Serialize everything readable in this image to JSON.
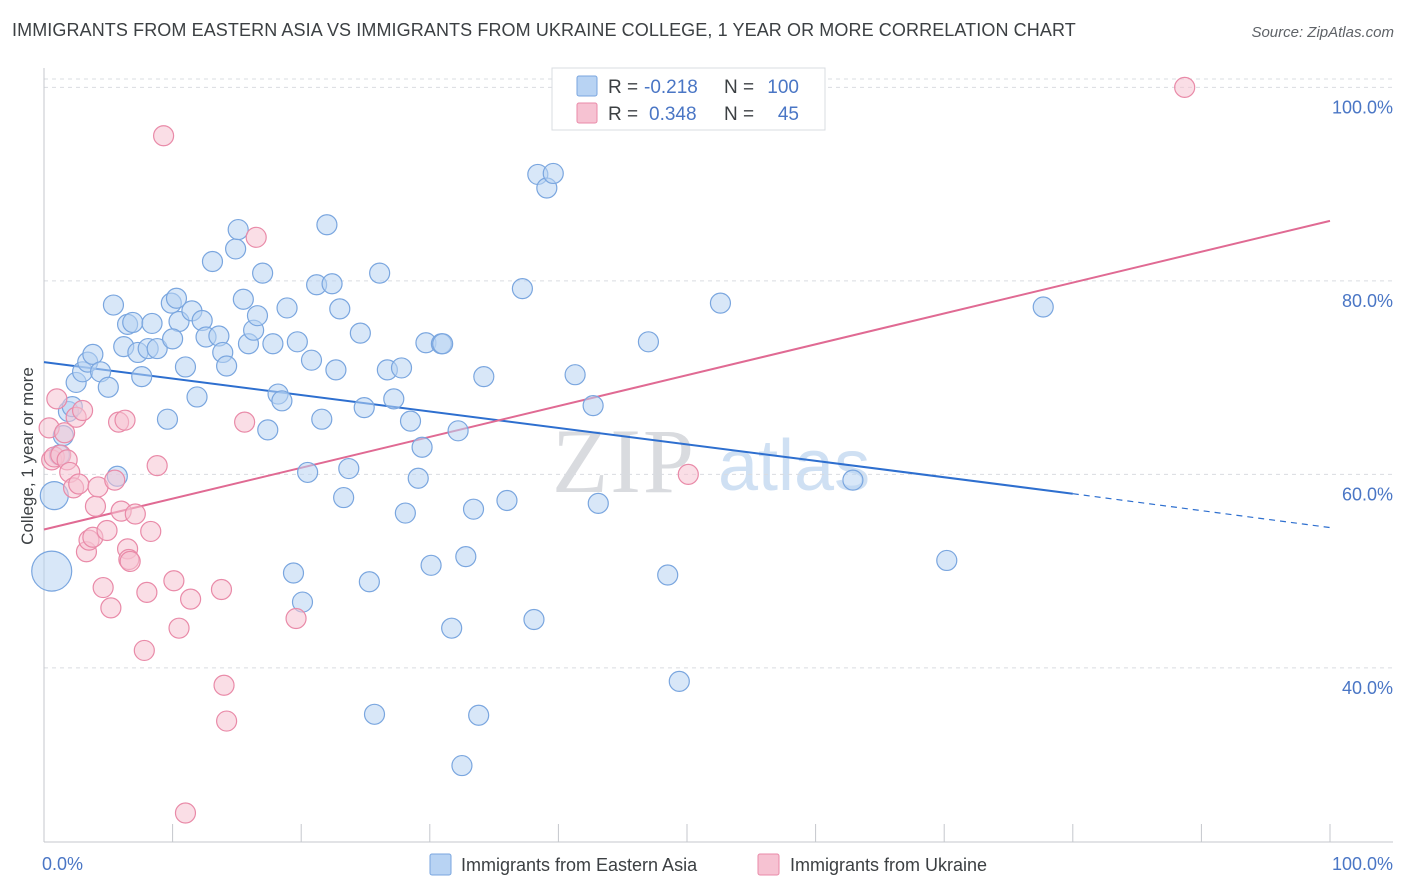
{
  "header": {
    "title": "IMMIGRANTS FROM EASTERN ASIA VS IMMIGRANTS FROM UKRAINE COLLEGE, 1 YEAR OR MORE CORRELATION CHART",
    "source": "Source: ZipAtlas.com"
  },
  "watermark": {
    "zip": "ZIP",
    "atlas": "atlas"
  },
  "legend": {
    "series": [
      {
        "r_label": "R =",
        "r_value": "-0.218",
        "n_label": "N =",
        "n_value": "100"
      },
      {
        "r_label": "R =",
        "r_value": "0.348",
        "n_label": "N =",
        "n_value": "45"
      }
    ]
  },
  "colors": {
    "blue_fill": "#b8d3f3",
    "blue_stroke": "#7aa6df",
    "blue_line": "#2e6fcf",
    "pink_fill": "#f6c2d2",
    "pink_stroke": "#e98aa8",
    "pink_line": "#e06a93",
    "grid": "#d9dce1",
    "tick_text": "#4a76c5"
  },
  "chart_data": {
    "type": "scatter",
    "title": "IMMIGRANTS FROM EASTERN ASIA VS IMMIGRANTS FROM UKRAINE COLLEGE, 1 YEAR OR MORE CORRELATION CHART",
    "xlabel": "",
    "ylabel": "College, 1 year or more",
    "xlim": [
      0,
      100
    ],
    "ylim": [
      22,
      102
    ],
    "x_tick_labels": [
      "0.0%",
      "100.0%"
    ],
    "y_ticks": [
      40,
      60,
      80,
      100
    ],
    "y_tick_labels": [
      "40.0%",
      "60.0%",
      "80.0%",
      "100.0%"
    ],
    "grid": true,
    "legend_position": "top-center",
    "series": [
      {
        "name": "Immigrants from Eastern Asia",
        "color": "#7aa6df",
        "r": -0.218,
        "n": 100,
        "trend": {
          "x": [
            0,
            80
          ],
          "y": [
            71.6,
            58.0
          ],
          "dashed_to": [
            100,
            54.5
          ]
        },
        "points": [
          [
            0.6,
            50.0,
            20
          ],
          [
            0.8,
            57.8,
            14
          ],
          [
            1.2,
            62.0,
            10
          ],
          [
            1.5,
            64.0,
            10
          ],
          [
            1.9,
            66.5,
            10
          ],
          [
            2.2,
            67.0,
            10
          ],
          [
            2.5,
            69.5,
            10
          ],
          [
            3.0,
            70.6,
            10
          ],
          [
            3.4,
            71.6,
            10
          ],
          [
            3.8,
            72.4,
            10
          ],
          [
            4.4,
            70.6,
            10
          ],
          [
            5.0,
            69.0,
            10
          ],
          [
            5.4,
            77.5,
            10
          ],
          [
            5.7,
            59.8,
            10
          ],
          [
            6.2,
            73.2,
            10
          ],
          [
            6.5,
            75.5,
            10
          ],
          [
            6.9,
            75.7,
            10
          ],
          [
            7.3,
            72.6,
            10
          ],
          [
            7.6,
            70.1,
            10
          ],
          [
            8.1,
            73.0,
            10
          ],
          [
            8.4,
            75.6,
            10
          ],
          [
            8.8,
            73.0,
            10
          ],
          [
            9.6,
            65.7,
            10
          ],
          [
            9.9,
            77.7,
            10
          ],
          [
            10.3,
            78.2,
            10
          ],
          [
            10.5,
            75.8,
            10
          ],
          [
            11.0,
            71.1,
            10
          ],
          [
            11.5,
            76.9,
            10
          ],
          [
            11.9,
            68.0,
            10
          ],
          [
            12.3,
            75.9,
            10
          ],
          [
            12.6,
            74.2,
            10
          ],
          [
            13.1,
            82.0,
            10
          ],
          [
            13.6,
            74.3,
            10
          ],
          [
            13.9,
            72.6,
            10
          ],
          [
            14.2,
            71.2,
            10
          ],
          [
            14.9,
            83.3,
            10
          ],
          [
            15.1,
            85.3,
            10
          ],
          [
            15.5,
            78.1,
            10
          ],
          [
            15.9,
            73.5,
            10
          ],
          [
            16.3,
            74.9,
            10
          ],
          [
            16.6,
            76.4,
            10
          ],
          [
            17.0,
            80.8,
            10
          ],
          [
            17.4,
            64.6,
            10
          ],
          [
            17.8,
            73.5,
            10
          ],
          [
            18.2,
            68.3,
            10
          ],
          [
            18.5,
            67.6,
            10
          ],
          [
            18.9,
            77.2,
            10
          ],
          [
            19.4,
            49.8,
            10
          ],
          [
            19.7,
            73.7,
            10
          ],
          [
            20.1,
            46.8,
            10
          ],
          [
            20.5,
            60.2,
            10
          ],
          [
            20.8,
            71.8,
            10
          ],
          [
            21.2,
            79.6,
            10
          ],
          [
            21.6,
            65.7,
            10
          ],
          [
            22.0,
            85.8,
            10
          ],
          [
            22.4,
            79.7,
            10
          ],
          [
            22.7,
            70.8,
            10
          ],
          [
            23.0,
            77.1,
            10
          ],
          [
            23.3,
            57.6,
            10
          ],
          [
            23.7,
            60.6,
            10
          ],
          [
            24.6,
            74.6,
            10
          ],
          [
            24.9,
            66.9,
            10
          ],
          [
            25.3,
            48.9,
            10
          ],
          [
            25.7,
            35.2,
            10
          ],
          [
            26.1,
            80.8,
            10
          ],
          [
            26.7,
            70.8,
            10
          ],
          [
            27.2,
            67.8,
            10
          ],
          [
            27.8,
            71.0,
            10
          ],
          [
            28.1,
            56.0,
            10
          ],
          [
            28.5,
            65.5,
            10
          ],
          [
            29.1,
            59.6,
            10
          ],
          [
            29.4,
            62.8,
            10
          ],
          [
            29.7,
            73.6,
            10
          ],
          [
            30.1,
            50.6,
            10
          ],
          [
            30.9,
            73.5,
            10
          ],
          [
            31.7,
            44.1,
            10
          ],
          [
            32.2,
            64.5,
            10
          ],
          [
            32.5,
            29.9,
            10
          ],
          [
            32.8,
            51.5,
            10
          ],
          [
            33.4,
            56.4,
            10
          ],
          [
            33.8,
            35.1,
            10
          ],
          [
            34.2,
            70.1,
            10
          ],
          [
            36.0,
            57.3,
            10
          ],
          [
            37.2,
            79.2,
            10
          ],
          [
            38.1,
            45.0,
            10
          ],
          [
            38.4,
            91.0,
            10
          ],
          [
            39.1,
            89.6,
            10
          ],
          [
            39.6,
            91.1,
            10
          ],
          [
            41.3,
            70.3,
            10
          ],
          [
            42.7,
            67.1,
            10
          ],
          [
            43.1,
            57.0,
            10
          ],
          [
            47.0,
            73.7,
            10
          ],
          [
            48.5,
            49.6,
            10
          ],
          [
            49.4,
            38.6,
            10
          ],
          [
            52.6,
            77.7,
            10
          ],
          [
            62.9,
            59.4,
            10
          ],
          [
            70.2,
            51.1,
            10
          ],
          [
            77.7,
            77.3,
            10
          ],
          [
            31.0,
            73.5,
            10
          ],
          [
            10.0,
            74.0,
            10
          ]
        ]
      },
      {
        "name": "Immigrants from Ukraine",
        "color": "#e98aa8",
        "r": 0.348,
        "n": 45,
        "trend": {
          "x": [
            0,
            100
          ],
          "y": [
            54.3,
            86.2
          ]
        },
        "points": [
          [
            0.4,
            64.8,
            10
          ],
          [
            0.6,
            61.5,
            10
          ],
          [
            0.8,
            61.8,
            10
          ],
          [
            1.0,
            67.8,
            10
          ],
          [
            1.3,
            62.0,
            10
          ],
          [
            1.6,
            64.3,
            10
          ],
          [
            1.8,
            61.5,
            10
          ],
          [
            2.0,
            60.2,
            10
          ],
          [
            2.3,
            58.6,
            10
          ],
          [
            2.5,
            65.9,
            10
          ],
          [
            2.7,
            59.0,
            10
          ],
          [
            3.0,
            66.6,
            10
          ],
          [
            3.3,
            52.0,
            10
          ],
          [
            3.5,
            53.2,
            10
          ],
          [
            3.8,
            53.5,
            10
          ],
          [
            4.0,
            56.7,
            10
          ],
          [
            4.2,
            58.7,
            10
          ],
          [
            4.6,
            48.3,
            10
          ],
          [
            4.9,
            54.2,
            10
          ],
          [
            5.2,
            46.2,
            10
          ],
          [
            5.5,
            59.4,
            10
          ],
          [
            5.8,
            65.4,
            10
          ],
          [
            6.0,
            56.2,
            10
          ],
          [
            6.3,
            65.6,
            10
          ],
          [
            6.5,
            52.3,
            10
          ],
          [
            6.6,
            51.2,
            10
          ],
          [
            6.7,
            51.0,
            10
          ],
          [
            7.1,
            55.9,
            10
          ],
          [
            7.8,
            41.8,
            10
          ],
          [
            8.0,
            47.8,
            10
          ],
          [
            8.3,
            54.1,
            10
          ],
          [
            8.8,
            60.9,
            10
          ],
          [
            9.3,
            95.0,
            10
          ],
          [
            10.1,
            49.0,
            10
          ],
          [
            10.5,
            44.1,
            10
          ],
          [
            11.0,
            25.0,
            10
          ],
          [
            11.4,
            47.1,
            10
          ],
          [
            13.8,
            48.1,
            10
          ],
          [
            14.0,
            38.2,
            10
          ],
          [
            14.2,
            34.5,
            10
          ],
          [
            15.6,
            65.4,
            10
          ],
          [
            16.5,
            84.5,
            10
          ],
          [
            19.6,
            45.1,
            10
          ],
          [
            50.1,
            60.0,
            10
          ],
          [
            88.7,
            100.0,
            10
          ]
        ]
      }
    ]
  },
  "bottom_legend": {
    "items": [
      {
        "label": "Immigrants from Eastern Asia"
      },
      {
        "label": "Immigrants from Ukraine"
      }
    ]
  }
}
